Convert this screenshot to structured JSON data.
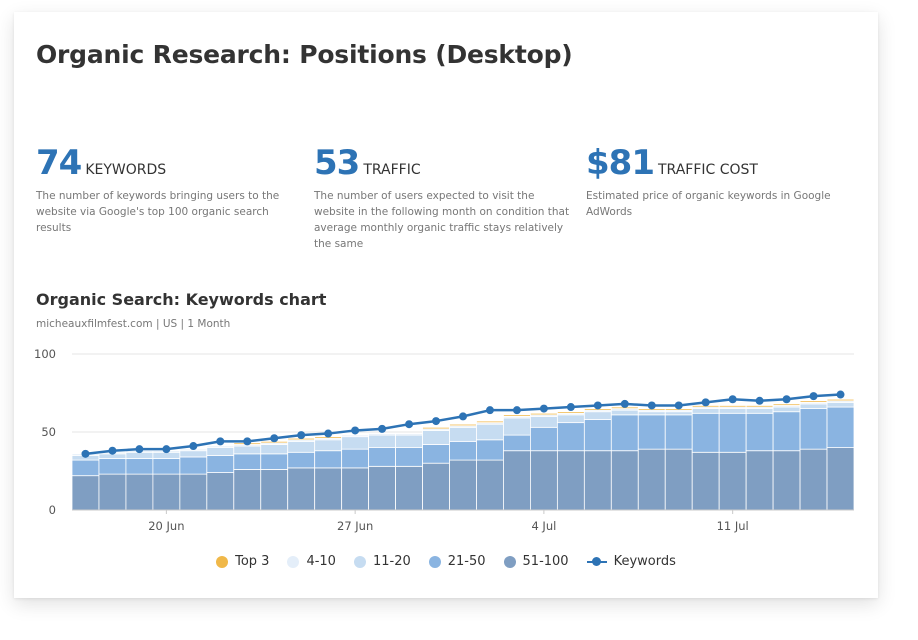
{
  "page": {
    "title": "Organic Research: Positions (Desktop)"
  },
  "metrics": [
    {
      "value": "74",
      "label": "KEYWORDS",
      "description": "The number of keywords bringing users to the website via Google's top 100 organic search results"
    },
    {
      "value": "53",
      "label": "TRAFFIC",
      "description": "The number of users expected to visit the website in the following month on condition that average monthly organic traffic stays relatively the same"
    },
    {
      "value": "$81",
      "label": "TRAFFIC COST",
      "description": "Estimated price of organic keywords in Google AdWords"
    }
  ],
  "colors": {
    "accent": "#2d73b5",
    "top3": "#f0b849",
    "pos_4_10": "#e4eef9",
    "pos_11_20": "#c6dcf1",
    "pos_21_50": "#8ab4e1",
    "pos_51_100": "#7f9ec2",
    "grid": "#e6e6e6"
  },
  "chart_data": {
    "type": "area",
    "title": "Organic Search: Keywords chart",
    "subtitle": "micheauxfilmfest.com | US | 1 Month",
    "y_ticks": [
      0,
      50,
      100
    ],
    "ylim": [
      0,
      100
    ],
    "x_ticks": [
      "20 Jun",
      "27 Jun",
      "4 Jul",
      "11 Jul"
    ],
    "x_tick_days": [
      3,
      10,
      17,
      24
    ],
    "stacked": true,
    "x": [
      "17 Jun",
      "18 Jun",
      "19 Jun",
      "20 Jun",
      "21 Jun",
      "22 Jun",
      "23 Jun",
      "24 Jun",
      "25 Jun",
      "26 Jun",
      "27 Jun",
      "28 Jun",
      "29 Jun",
      "30 Jun",
      "1 Jul",
      "2 Jul",
      "3 Jul",
      "4 Jul",
      "5 Jul",
      "6 Jul",
      "7 Jul",
      "8 Jul",
      "9 Jul",
      "10 Jul",
      "11 Jul",
      "12 Jul",
      "13 Jul",
      "14 Jul",
      "15 Jul"
    ],
    "series": [
      {
        "name": "51-100",
        "values": [
          22,
          23,
          23,
          23,
          23,
          24,
          26,
          26,
          27,
          27,
          27,
          28,
          28,
          30,
          32,
          32,
          38,
          38,
          38,
          38,
          38,
          39,
          39,
          37,
          37,
          38,
          38,
          39,
          40
        ]
      },
      {
        "name": "21-50",
        "values": [
          10,
          10,
          10,
          10,
          11,
          11,
          10,
          10,
          10,
          11,
          12,
          12,
          12,
          12,
          12,
          13,
          10,
          15,
          18,
          20,
          23,
          22,
          22,
          25,
          25,
          24,
          25,
          26,
          26
        ]
      },
      {
        "name": "11-20",
        "values": [
          3,
          3,
          4,
          4,
          4,
          5,
          5,
          6,
          7,
          7,
          8,
          8,
          8,
          9,
          9,
          10,
          11,
          7,
          5,
          5,
          3,
          2,
          2,
          3,
          3,
          3,
          3,
          3,
          3
        ]
      },
      {
        "name": "4-10",
        "values": [
          1,
          1,
          1,
          1,
          1,
          1,
          1,
          1,
          1,
          1,
          1,
          1,
          1,
          1,
          1,
          1,
          1,
          1,
          1,
          1,
          1,
          1,
          1,
          1,
          1,
          1,
          1,
          1,
          1
        ]
      },
      {
        "name": "Top 3",
        "values": [
          0,
          0,
          0,
          0,
          0,
          0,
          1,
          1,
          1,
          1,
          0,
          0,
          0,
          1,
          1,
          1,
          1,
          1,
          1,
          1,
          1,
          1,
          1,
          1,
          1,
          1,
          1,
          1,
          1
        ]
      }
    ],
    "line": {
      "name": "Keywords",
      "values": [
        36,
        38,
        39,
        39,
        41,
        44,
        44,
        46,
        48,
        49,
        51,
        52,
        55,
        57,
        60,
        64,
        64,
        65,
        66,
        67,
        68,
        67,
        67,
        69,
        71,
        70,
        71,
        73,
        74
      ]
    },
    "legend": [
      {
        "name": "Top 3",
        "color": "#f0b849",
        "kind": "dot"
      },
      {
        "name": "4-10",
        "color": "#e4eef9",
        "kind": "dot"
      },
      {
        "name": "11-20",
        "color": "#c6dcf1",
        "kind": "dot"
      },
      {
        "name": "21-50",
        "color": "#8ab4e1",
        "kind": "dot"
      },
      {
        "name": "51-100",
        "color": "#7f9ec2",
        "kind": "dot"
      },
      {
        "name": "Keywords",
        "color": "#2d73b5",
        "kind": "line"
      }
    ],
    "legend_position": "bottom",
    "grid": true
  }
}
